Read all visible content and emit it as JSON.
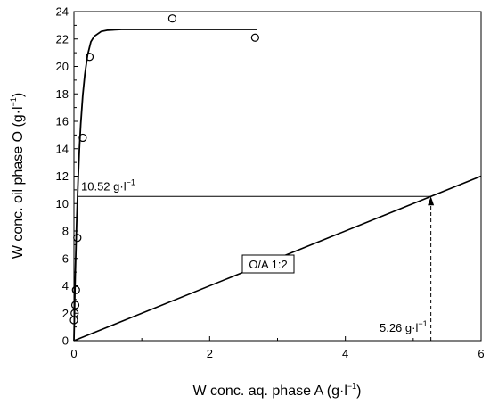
{
  "chart_data": {
    "type": "scatter",
    "xlabel": {
      "main": "W conc. aq. phase A (g·l",
      "sup": "−1",
      "end": ")"
    },
    "ylabel": {
      "main": "W conc. oil phase O (g·l",
      "sup": "−1",
      "end": ")"
    },
    "xlim": [
      0,
      6
    ],
    "ylim": [
      0,
      24
    ],
    "xticks": [
      0,
      2,
      4,
      6
    ],
    "yticks": [
      0,
      2,
      4,
      6,
      8,
      10,
      12,
      14,
      16,
      18,
      20,
      22,
      24
    ],
    "xtick_labels": [
      "0",
      "2",
      "4",
      "6"
    ],
    "ytick_labels": [
      "0",
      "2",
      "4",
      "6",
      "8",
      "10",
      "12",
      "14",
      "16",
      "18",
      "20",
      "22",
      "24"
    ],
    "grid": false,
    "series": [
      {
        "kind": "points",
        "marker": "open-circle",
        "x": [
          0.0,
          0.01,
          0.02,
          0.03,
          0.05,
          0.13,
          0.23,
          1.45,
          2.67
        ],
        "y": [
          1.5,
          2.0,
          2.6,
          3.7,
          7.5,
          14.8,
          20.7,
          23.5,
          22.1
        ]
      },
      {
        "kind": "fit-curve",
        "x": [
          0.0,
          0.02,
          0.04,
          0.06,
          0.08,
          0.1,
          0.13,
          0.16,
          0.2,
          0.25,
          0.3,
          0.4,
          0.5,
          0.7,
          1.0,
          1.5,
          2.0,
          2.7
        ],
        "y": [
          0.0,
          4.9,
          8.6,
          11.6,
          14.0,
          15.8,
          17.9,
          19.4,
          20.8,
          21.8,
          22.2,
          22.55,
          22.65,
          22.7,
          22.7,
          22.7,
          22.7,
          22.7
        ]
      },
      {
        "kind": "operating-line",
        "x": [
          0,
          6
        ],
        "y": [
          0,
          12
        ]
      }
    ],
    "annotations": [
      {
        "id": "y-intercept",
        "text": "10.52 g·l",
        "sup": "−1",
        "x": 0.06,
        "y": 10.52
      },
      {
        "id": "x-intercept",
        "text": "5.26 g·l",
        "sup": "−1",
        "x": 5.26,
        "y": 10.52
      },
      {
        "id": "oa-ratio",
        "text": "O/A 1:2"
      }
    ]
  }
}
